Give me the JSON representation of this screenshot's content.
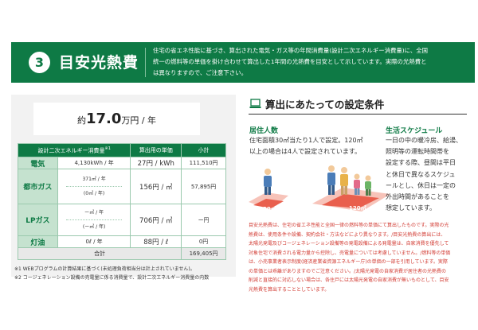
{
  "header": {
    "number": "3",
    "title": "目安光熱費",
    "desc_lines": [
      "住宅の省エネ性能に基づき、算出された電気・ガス等の年間消費量(設計二次エネルギー消費量)に、全国",
      "統一の燃料等の単価を掛け合わせて算出した1年間の光熱費を目安として示しています。実際の光熱費と",
      "は異なりますので、ご注意下さい。"
    ]
  },
  "summary": {
    "prefix": "約",
    "amount": "17.0",
    "unit": "万円 / 年"
  },
  "table": {
    "headers": [
      "設計二次エネルギー消費量",
      "算出用の単価",
      "小計"
    ],
    "header_mark": "※1",
    "rows": {
      "electric": {
        "label": "電気",
        "consumption": "4,130kWh / 年",
        "price": "27円 / kWh",
        "subtotal": "111,510円"
      },
      "citygas": {
        "label": "都市ガス",
        "consumption": "371㎥ / 年",
        "consumption2": "(0㎥ / 年)",
        "price": "156円 / ㎥",
        "subtotal": "57,895円"
      },
      "lpgas": {
        "label": "LPガス",
        "consumption": "ー㎥ / 年",
        "consumption2": "(ー㎥ / 年)",
        "price": "706円 / ㎥",
        "subtotal": "ー円"
      },
      "kerosene": {
        "label": "灯油",
        "consumption": "0ℓ / 年",
        "price": "88円 / ℓ",
        "subtotal": "0円"
      },
      "total": {
        "label": "合計",
        "subtotal": "169,405円"
      }
    }
  },
  "notes": [
    "※1 WEBプログラムの計算結果に基づく(未処理負荷相当分は計上されていません)。",
    "※2 コージェネレーション設備の売電量に係る消費量で、設計二次エネルギー消費量の内数"
  ],
  "right": {
    "title": "算出にあたっての設定条件",
    "residents": {
      "title": "居住人数",
      "lines": [
        "住宅面積30㎡当たり1人で設定。120㎡",
        "以上の場合は4人で設定されています。"
      ],
      "floor_small": "30㎡",
      "floor_large": "120㎡"
    },
    "schedule": {
      "title": "生活スケジュール",
      "lines": [
        "一日の中の暖冷房、給湯、",
        "照明等の運転時間帯を",
        "設定する際、昼間は平日",
        "と休日で異なるスケジュ",
        "ールとし、休日は一定の",
        "外出時間があることを",
        "想定しています。"
      ]
    },
    "red_note": [
      "目安光熱費は、住宅の省エネ性能と全国一律の燃料等の単価にて算出したものです。実際の光",
      "熱費は、使用条件や設備、契約会社・方法などにより異なります。/目安光熱費の算出には、",
      "太陽光発電及びコージェネレーション設備等の発電設備による発電量は、自家消費を優先して",
      "対象住宅で消費される電力量から控除し、売電量については考慮していません。/燃料等の単価",
      "は、小売事業者表示制度(経済産業省資源エネルギー庁)の単価の一部を引用しています。実際",
      "の単価とは乖離がありますのでご注意ください。/太陽光発電の自家消費が居住者の光熱費の",
      "削減と直接的に対応しない場合は、各住戸には太陽光発電の自家消費が無いものとして、目安",
      "光熱費を算出することとしています。"
    ]
  },
  "colors": {
    "brand_green": "#0e7a45",
    "light_green": "#c5e2cf",
    "note_red": "#d23b33"
  },
  "icons": {
    "header_badge": "number-badge",
    "conditions": "laptop-icon"
  }
}
